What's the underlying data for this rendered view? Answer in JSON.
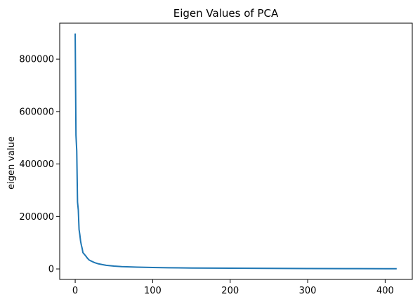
{
  "chart_data": {
    "type": "line",
    "title": "Eigen Values of PCA",
    "xlabel": "",
    "ylabel": "eigen value",
    "xlim": [
      -20,
      435
    ],
    "ylim": [
      -40000,
      937000
    ],
    "x_ticks": [
      0,
      100,
      200,
      300,
      400
    ],
    "x_tick_labels": [
      "0",
      "100",
      "200",
      "300",
      "400"
    ],
    "y_ticks": [
      0,
      200000,
      400000,
      600000,
      800000
    ],
    "y_tick_labels": [
      "0",
      "200000",
      "400000",
      "600000",
      "800000"
    ],
    "grid": false,
    "series": [
      {
        "color": "#1f77b4",
        "points": [
          [
            0,
            895000
          ],
          [
            1,
            510000
          ],
          [
            2,
            450000
          ],
          [
            3,
            255000
          ],
          [
            4,
            225000
          ],
          [
            5,
            150000
          ],
          [
            6,
            130000
          ],
          [
            7,
            105000
          ],
          [
            8,
            90000
          ],
          [
            9,
            78000
          ],
          [
            10,
            62000
          ],
          [
            12,
            55000
          ],
          [
            14,
            48000
          ],
          [
            16,
            40000
          ],
          [
            18,
            34000
          ],
          [
            20,
            31000
          ],
          [
            25,
            24000
          ],
          [
            30,
            19500
          ],
          [
            35,
            16500
          ],
          [
            40,
            14000
          ],
          [
            50,
            11000
          ],
          [
            60,
            9000
          ],
          [
            70,
            7800
          ],
          [
            80,
            6800
          ],
          [
            100,
            5400
          ],
          [
            120,
            4500
          ],
          [
            150,
            3600
          ],
          [
            200,
            2700
          ],
          [
            250,
            2100
          ],
          [
            300,
            1600
          ],
          [
            350,
            1250
          ],
          [
            400,
            900
          ],
          [
            414,
            800
          ]
        ]
      }
    ]
  }
}
